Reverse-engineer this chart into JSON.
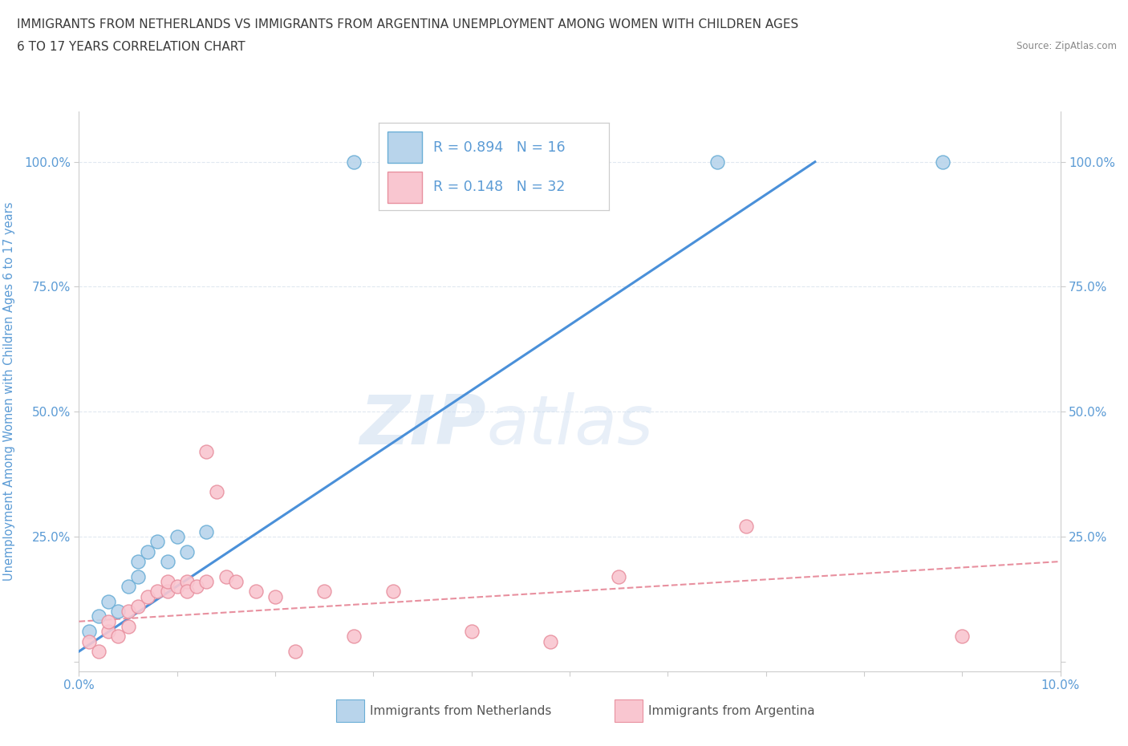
{
  "title_line1": "IMMIGRANTS FROM NETHERLANDS VS IMMIGRANTS FROM ARGENTINA UNEMPLOYMENT AMONG WOMEN WITH CHILDREN AGES",
  "title_line2": "6 TO 17 YEARS CORRELATION CHART",
  "source": "Source: ZipAtlas.com",
  "ylabel": "Unemployment Among Women with Children Ages 6 to 17 years",
  "xlim": [
    0.0,
    0.1
  ],
  "ylim": [
    -0.02,
    1.1
  ],
  "ytick_values": [
    0.0,
    0.25,
    0.5,
    0.75,
    1.0
  ],
  "xtick_values": [
    0.0,
    0.01,
    0.02,
    0.03,
    0.04,
    0.05,
    0.06,
    0.07,
    0.08,
    0.09,
    0.1
  ],
  "netherlands_R": 0.894,
  "netherlands_N": 16,
  "argentina_R": 0.148,
  "argentina_N": 32,
  "netherlands_color": "#b8d4eb",
  "netherlands_edge_color": "#6aaed6",
  "argentina_color": "#f9c6d0",
  "argentina_edge_color": "#e8909f",
  "netherlands_line_color": "#4a90d9",
  "argentina_line_color": "#e8909f",
  "netherlands_scatter": [
    [
      0.001,
      0.06
    ],
    [
      0.002,
      0.09
    ],
    [
      0.003,
      0.12
    ],
    [
      0.004,
      0.1
    ],
    [
      0.005,
      0.15
    ],
    [
      0.006,
      0.2
    ],
    [
      0.006,
      0.17
    ],
    [
      0.007,
      0.22
    ],
    [
      0.008,
      0.24
    ],
    [
      0.009,
      0.2
    ],
    [
      0.01,
      0.25
    ],
    [
      0.011,
      0.22
    ],
    [
      0.013,
      0.26
    ],
    [
      0.028,
      1.0
    ],
    [
      0.065,
      1.0
    ],
    [
      0.088,
      1.0
    ]
  ],
  "argentina_scatter": [
    [
      0.001,
      0.04
    ],
    [
      0.002,
      0.02
    ],
    [
      0.003,
      0.06
    ],
    [
      0.003,
      0.08
    ],
    [
      0.004,
      0.05
    ],
    [
      0.005,
      0.1
    ],
    [
      0.005,
      0.07
    ],
    [
      0.006,
      0.11
    ],
    [
      0.007,
      0.13
    ],
    [
      0.008,
      0.14
    ],
    [
      0.009,
      0.14
    ],
    [
      0.009,
      0.16
    ],
    [
      0.01,
      0.15
    ],
    [
      0.011,
      0.16
    ],
    [
      0.011,
      0.14
    ],
    [
      0.012,
      0.15
    ],
    [
      0.013,
      0.16
    ],
    [
      0.013,
      0.42
    ],
    [
      0.014,
      0.34
    ],
    [
      0.015,
      0.17
    ],
    [
      0.016,
      0.16
    ],
    [
      0.018,
      0.14
    ],
    [
      0.02,
      0.13
    ],
    [
      0.022,
      0.02
    ],
    [
      0.025,
      0.14
    ],
    [
      0.028,
      0.05
    ],
    [
      0.032,
      0.14
    ],
    [
      0.04,
      0.06
    ],
    [
      0.048,
      0.04
    ],
    [
      0.055,
      0.17
    ],
    [
      0.068,
      0.27
    ],
    [
      0.09,
      0.05
    ]
  ],
  "netherlands_line": [
    [
      0.0,
      0.02
    ],
    [
      0.075,
      1.0
    ]
  ],
  "argentina_line": [
    [
      0.0,
      0.08
    ],
    [
      0.1,
      0.2
    ]
  ],
  "watermark_zip": "ZIP",
  "watermark_atlas": "atlas",
  "background_color": "#ffffff",
  "grid_color": "#e0e8f0",
  "title_color": "#3a3a3a",
  "tick_label_color": "#5b9bd5",
  "legend_text_color": "#5b9bd5",
  "bottom_legend_color": "#555555"
}
